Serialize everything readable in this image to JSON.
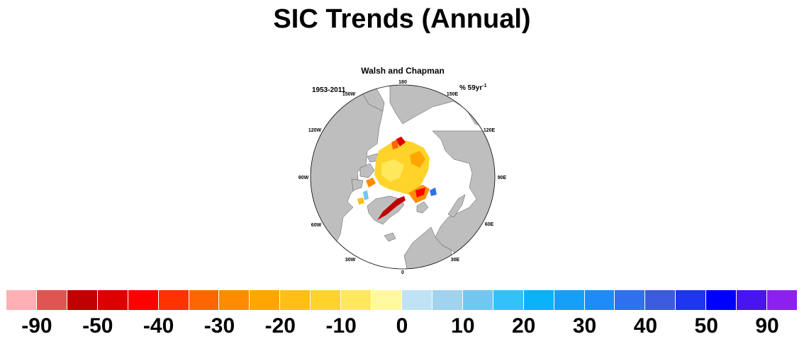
{
  "title": "SIC Trends (Annual)",
  "map": {
    "panel_title": "Walsh and Chapman",
    "period": "1953-2011",
    "units_prefix": "% 59yr",
    "units_exponent": "-1",
    "longitude_labels": [
      "180",
      "150E",
      "120E",
      "90E",
      "60E",
      "30E",
      "0",
      "30W",
      "60W",
      "90W",
      "120W",
      "150W"
    ],
    "land_color": "#bebebe",
    "ocean_color": "#ffffff"
  },
  "colorbar": {
    "colors": [
      "#ffb0b4",
      "#e05452",
      "#c00000",
      "#dc0000",
      "#ff0000",
      "#ff3300",
      "#ff6600",
      "#ff8c00",
      "#ffa600",
      "#ffbf14",
      "#ffd32a",
      "#ffe85c",
      "#fff8a0",
      "#bfe3f4",
      "#a2d3ee",
      "#72c6f0",
      "#32c2f8",
      "#0ab2f8",
      "#14a0f8",
      "#1e8cf8",
      "#3070f0",
      "#3c5ae0",
      "#1e36f0",
      "#0000ff",
      "#4814f0",
      "#8c20f0"
    ],
    "tick_labels": [
      "-90",
      "-50",
      "-40",
      "-30",
      "-20",
      "-10",
      "0",
      "10",
      "20",
      "30",
      "40",
      "50",
      "90"
    ]
  }
}
